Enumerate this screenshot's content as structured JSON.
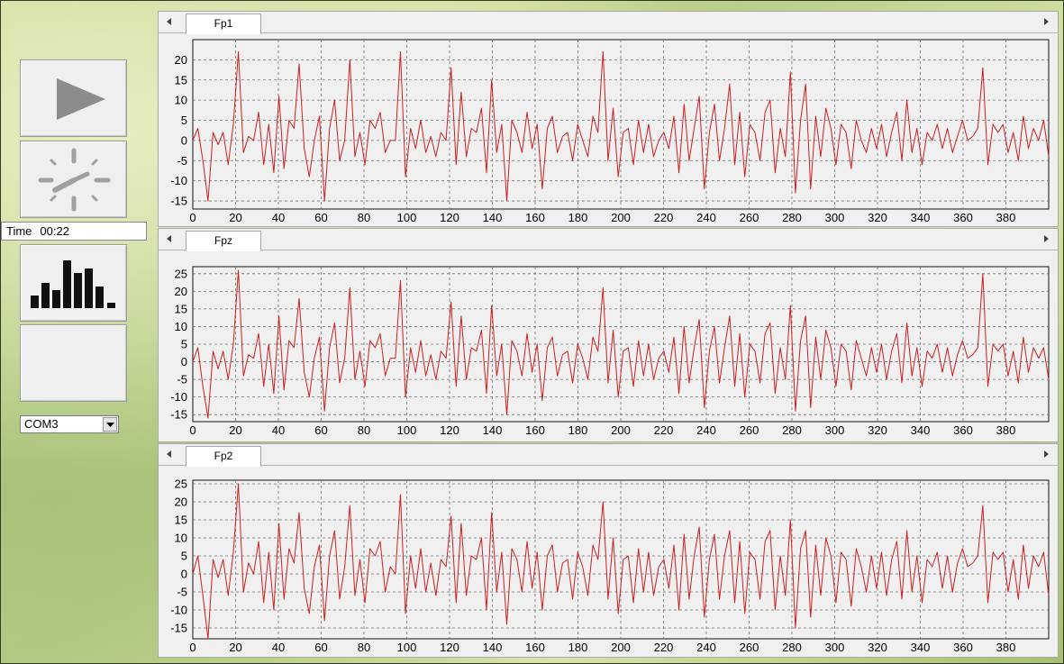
{
  "controls": {
    "play_icon": "play-icon",
    "timer_icon": "clock-icon",
    "spectrum_icon": "bar-chart-icon",
    "time_label": "Time",
    "time_value": "00:22",
    "port_select": "COM3",
    "trace_color": "#cc1f1f"
  },
  "chart_data": [
    {
      "type": "line",
      "channel": "Fp1",
      "xlim": [
        0,
        400
      ],
      "ylim": [
        -17,
        25
      ],
      "x_ticks": [
        0,
        20,
        40,
        60,
        80,
        100,
        120,
        140,
        160,
        180,
        200,
        220,
        240,
        260,
        280,
        300,
        320,
        340,
        360,
        380
      ],
      "y_ticks": [
        -15,
        -10,
        -5,
        0,
        5,
        10,
        15,
        20
      ],
      "grid": true,
      "series": [
        {
          "values": [
            0,
            3,
            -5,
            -15,
            2,
            -1,
            2,
            -6,
            4,
            22,
            -3,
            1,
            0,
            7,
            -6,
            4,
            -8,
            11,
            -7,
            5,
            3,
            19,
            -2,
            -9,
            0,
            6,
            -15,
            3,
            10,
            -5,
            0,
            20,
            -4,
            2,
            -6,
            5,
            3,
            7,
            -3,
            0,
            0,
            22,
            -9,
            3,
            -2,
            5,
            -3,
            1,
            -4,
            2,
            0,
            18,
            -6,
            12,
            -4,
            3,
            2,
            8,
            -8,
            15,
            -3,
            4,
            -15,
            5,
            2,
            -3,
            7,
            -2,
            4,
            -12,
            3,
            6,
            -3,
            1,
            2,
            -5,
            4,
            0,
            -4,
            6,
            2,
            22,
            -5,
            8,
            -9,
            2,
            3,
            -6,
            5,
            -3,
            4,
            -4,
            0,
            2,
            -2,
            6,
            -8,
            9,
            -5,
            3,
            11,
            -12,
            2,
            9,
            -5,
            3,
            14,
            -6,
            7,
            -9,
            4,
            2,
            -5,
            7,
            10,
            -8,
            3,
            -4,
            17,
            -13,
            5,
            14,
            -12,
            6,
            -4,
            8,
            3,
            -6,
            4,
            2,
            -7,
            5,
            0,
            -3,
            3,
            -2,
            4,
            -4,
            2,
            7,
            -5,
            10,
            -3,
            3,
            -6,
            2,
            0,
            4,
            -2,
            3,
            -3,
            1,
            5,
            0,
            1,
            3,
            18,
            -6,
            4,
            2,
            4,
            -3,
            2,
            -5,
            6,
            -2,
            3,
            0,
            5,
            -4
          ]
        }
      ]
    },
    {
      "type": "line",
      "channel": "Fpz",
      "xlim": [
        0,
        400
      ],
      "ylim": [
        -17,
        27
      ],
      "x_ticks": [
        0,
        20,
        40,
        60,
        80,
        100,
        120,
        140,
        160,
        180,
        200,
        220,
        240,
        260,
        280,
        300,
        320,
        340,
        360,
        380
      ],
      "y_ticks": [
        -15,
        -10,
        -5,
        0,
        5,
        10,
        15,
        20,
        25
      ],
      "grid": true,
      "series": [
        {
          "values": [
            0,
            4,
            -7,
            -16,
            3,
            -2,
            3,
            -5,
            5,
            26,
            -4,
            2,
            1,
            8,
            -7,
            5,
            -9,
            13,
            -8,
            6,
            4,
            18,
            -3,
            -10,
            1,
            7,
            -14,
            4,
            11,
            -6,
            1,
            21,
            -5,
            3,
            -7,
            6,
            4,
            8,
            -4,
            1,
            1,
            23,
            -10,
            4,
            -3,
            6,
            -4,
            2,
            -5,
            3,
            1,
            17,
            -7,
            13,
            -5,
            4,
            3,
            9,
            -9,
            16,
            -4,
            5,
            -15,
            6,
            3,
            -4,
            8,
            -3,
            5,
            -11,
            4,
            7,
            -4,
            2,
            3,
            -6,
            5,
            1,
            -5,
            7,
            3,
            21,
            -6,
            9,
            -10,
            3,
            4,
            -7,
            6,
            -4,
            5,
            -5,
            1,
            3,
            -3,
            7,
            -9,
            10,
            -6,
            4,
            12,
            -13,
            3,
            10,
            -6,
            4,
            13,
            -7,
            8,
            -10,
            5,
            3,
            -6,
            8,
            11,
            -9,
            4,
            -5,
            16,
            -14,
            6,
            13,
            -13,
            7,
            -5,
            9,
            4,
            -7,
            5,
            3,
            -8,
            6,
            1,
            -4,
            4,
            -3,
            5,
            -5,
            3,
            8,
            -6,
            11,
            -4,
            4,
            -7,
            3,
            1,
            5,
            -3,
            4,
            -4,
            2,
            6,
            1,
            2,
            4,
            25,
            -7,
            5,
            3,
            5,
            -4,
            3,
            -6,
            7,
            -3,
            4,
            1,
            4,
            -5
          ]
        }
      ]
    },
    {
      "type": "line",
      "channel": "Fp2",
      "xlim": [
        0,
        400
      ],
      "ylim": [
        -18,
        26
      ],
      "x_ticks": [
        0,
        20,
        40,
        60,
        80,
        100,
        120,
        140,
        160,
        180,
        200,
        220,
        240,
        260,
        280,
        300,
        320,
        340,
        360,
        380
      ],
      "y_ticks": [
        -15,
        -10,
        -5,
        0,
        5,
        10,
        15,
        20,
        25
      ],
      "grid": true,
      "series": [
        {
          "values": [
            0,
            5,
            -6,
            -18,
            4,
            -1,
            4,
            -6,
            6,
            25,
            -5,
            3,
            0,
            9,
            -8,
            6,
            -10,
            14,
            -7,
            7,
            3,
            17,
            -4,
            -11,
            2,
            8,
            -13,
            5,
            12,
            -7,
            2,
            19,
            -6,
            4,
            -8,
            7,
            5,
            9,
            -5,
            2,
            0,
            22,
            -11,
            5,
            -4,
            7,
            -5,
            3,
            -6,
            4,
            2,
            16,
            -8,
            14,
            -6,
            5,
            4,
            10,
            -10,
            17,
            -5,
            6,
            -14,
            7,
            4,
            -5,
            9,
            -4,
            6,
            -10,
            5,
            8,
            -5,
            3,
            4,
            -7,
            6,
            2,
            -6,
            8,
            4,
            20,
            -7,
            10,
            -11,
            4,
            5,
            -8,
            7,
            -5,
            6,
            -6,
            2,
            4,
            -4,
            8,
            -10,
            11,
            -7,
            5,
            13,
            -12,
            4,
            11,
            -7,
            5,
            12,
            -8,
            9,
            -11,
            6,
            4,
            -7,
            9,
            12,
            -10,
            5,
            -6,
            15,
            -15,
            7,
            12,
            -12,
            8,
            -6,
            10,
            5,
            -8,
            6,
            4,
            -9,
            7,
            2,
            -5,
            5,
            -4,
            6,
            -6,
            4,
            9,
            -7,
            12,
            -5,
            5,
            -8,
            4,
            2,
            6,
            -4,
            5,
            -5,
            3,
            7,
            2,
            3,
            5,
            19,
            -8,
            6,
            4,
            6,
            -5,
            4,
            -7,
            8,
            -4,
            5,
            2,
            6,
            -6
          ]
        }
      ]
    }
  ]
}
